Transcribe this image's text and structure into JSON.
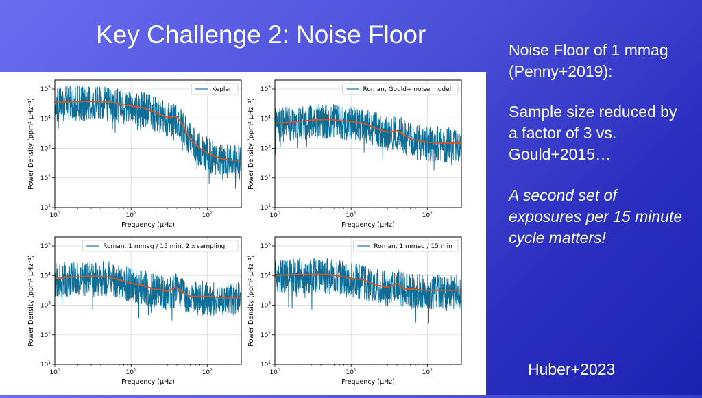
{
  "slide": {
    "title": "Key Challenge 2: Noise Floor",
    "note1": "Noise Floor of 1 mmag (Penny+2019):",
    "note2": "Sample size reduced by a factor of 3 vs. Gould+2015…",
    "note3": "A second set of exposures per 15 minute cycle matters!",
    "reference": "Huber+2023"
  },
  "colors": {
    "series": "#1f77b4",
    "noise": "#0b6e99",
    "smooth": "#d9541e",
    "grid": "#d9d9d9"
  },
  "chart_data": [
    {
      "type": "line",
      "legend": "Kepler",
      "legend_loc": "upper right",
      "xscale": "log",
      "yscale": "log",
      "xlabel": "Frequency (μHz)",
      "ylabel": "Power Density (ppm² μHz⁻¹)",
      "xlim": [
        1,
        280
      ],
      "ylim": [
        10,
        200000
      ],
      "grid": true,
      "x": [
        1,
        2,
        3,
        5,
        8,
        10,
        15,
        20,
        30,
        40,
        50,
        60,
        80,
        100,
        150,
        200,
        280
      ],
      "y_smoothed": [
        35000,
        38000,
        38000,
        37000,
        29000,
        27000,
        23000,
        17000,
        11000,
        12000,
        5000,
        2000,
        1000,
        700,
        450,
        400,
        390
      ],
      "noise_spread_dex": 0.6
    },
    {
      "type": "line",
      "legend": "Roman, Gould+ noise model",
      "legend_loc": "upper right",
      "xscale": "log",
      "yscale": "log",
      "xlabel": "Frequency (μHz)",
      "ylabel": "Power Density (ppm² μHz⁻¹)",
      "xlim": [
        1,
        280
      ],
      "ylim": [
        10,
        200000
      ],
      "grid": true,
      "x": [
        1,
        2,
        3,
        5,
        8,
        10,
        15,
        20,
        30,
        40,
        50,
        60,
        80,
        100,
        150,
        200,
        280
      ],
      "y_smoothed": [
        7000,
        8000,
        9000,
        9500,
        8500,
        8000,
        7000,
        5000,
        3500,
        4000,
        2800,
        2000,
        1800,
        1600,
        1500,
        1500,
        1500
      ],
      "noise_spread_dex": 0.6
    },
    {
      "type": "line",
      "legend": "Roman, 1 mmag / 15 min, 2 x sampling",
      "legend_loc": "upper right",
      "xscale": "log",
      "yscale": "log",
      "xlabel": "Frequency (μHz)",
      "ylabel": "Power Density (ppm² μHz⁻¹)",
      "xlim": [
        1,
        280
      ],
      "ylim": [
        10,
        200000
      ],
      "grid": true,
      "x": [
        1,
        2,
        3,
        5,
        8,
        10,
        15,
        20,
        30,
        40,
        50,
        60,
        80,
        100,
        150,
        200,
        280
      ],
      "y_smoothed": [
        8000,
        9000,
        9500,
        9000,
        6500,
        5500,
        4500,
        3500,
        3000,
        4000,
        2500,
        2000,
        2000,
        2000,
        1800,
        1800,
        1800
      ],
      "noise_spread_dex": 0.6
    },
    {
      "type": "line",
      "legend": "Roman, 1 mmag / 15 min",
      "legend_loc": "upper right",
      "xscale": "log",
      "yscale": "log",
      "xlabel": "Frequency (μHz)",
      "ylabel": "Power Density (ppm² μHz⁻¹)",
      "xlim": [
        1,
        280
      ],
      "ylim": [
        10,
        200000
      ],
      "grid": true,
      "x": [
        1,
        2,
        3,
        5,
        8,
        10,
        15,
        20,
        30,
        40,
        50,
        60,
        80,
        100,
        150,
        200,
        280
      ],
      "y_smoothed": [
        10000,
        11000,
        11000,
        11000,
        9000,
        8000,
        7000,
        5000,
        4000,
        5500,
        3500,
        3500,
        3300,
        3200,
        3200,
        3200,
        3200
      ],
      "noise_spread_dex": 0.6
    }
  ]
}
